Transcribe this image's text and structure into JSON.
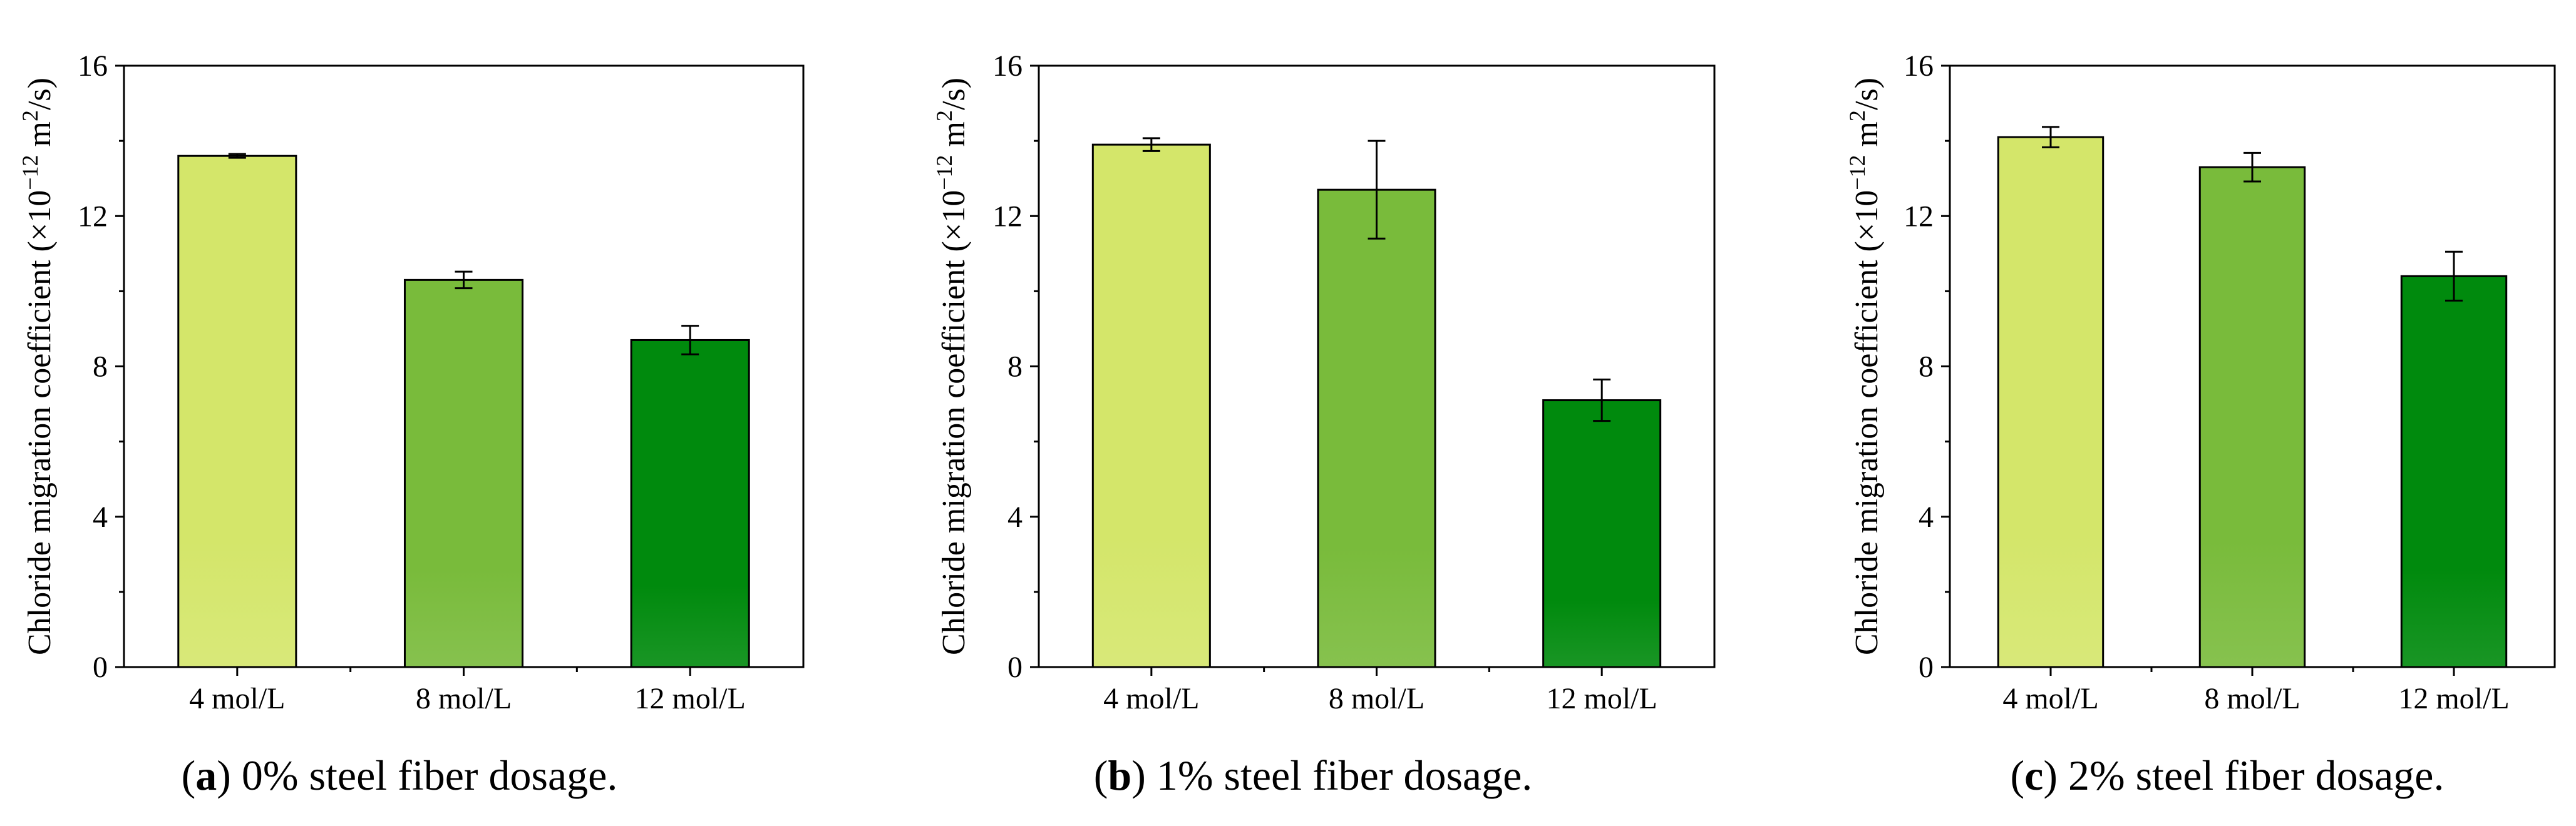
{
  "chart_data": [
    {
      "type": "bar",
      "panel_letter": "a",
      "title": "0% steel fiber dosage.",
      "categories": [
        "4 mol/L",
        "8 mol/L",
        "12 mol/L"
      ],
      "values": [
        13.6,
        10.3,
        8.7
      ],
      "errors": [
        0.05,
        0.22,
        0.38
      ],
      "ylabel_text": "Chloride migration coefficient (×10",
      "ylabel_exp": "−12",
      "ylabel_unit": " m",
      "ylabel_unit_exp": "2",
      "ylabel_tail": "/s)",
      "xlabel": "",
      "ylim": [
        0,
        16
      ],
      "yticks": [
        0,
        4,
        8,
        12,
        16
      ],
      "colors": [
        "#d4e66a",
        "#79bb3b",
        "#008a0d"
      ]
    },
    {
      "type": "bar",
      "panel_letter": "b",
      "title": "1% steel fiber dosage.",
      "categories": [
        "4 mol/L",
        "8 mol/L",
        "12 mol/L"
      ],
      "values": [
        13.9,
        12.7,
        7.1
      ],
      "errors": [
        0.17,
        1.3,
        0.55
      ],
      "ylabel_text": "Chloride migration coefficient (×10",
      "ylabel_exp": "−12",
      "ylabel_unit": " m",
      "ylabel_unit_exp": "2",
      "ylabel_tail": "/s)",
      "xlabel": "",
      "ylim": [
        0,
        16
      ],
      "yticks": [
        0,
        4,
        8,
        12,
        16
      ],
      "colors": [
        "#d4e66a",
        "#79bb3b",
        "#008a0d"
      ]
    },
    {
      "type": "bar",
      "panel_letter": "c",
      "title": "2% steel fiber dosage.",
      "categories": [
        "4 mol/L",
        "8 mol/L",
        "12 mol/L"
      ],
      "values": [
        14.1,
        13.3,
        10.4
      ],
      "errors": [
        0.27,
        0.38,
        0.65
      ],
      "ylabel_text": "Chloride migration coefficient (×10",
      "ylabel_exp": "−12",
      "ylabel_unit": " m",
      "ylabel_unit_exp": "2",
      "ylabel_tail": "/s)",
      "xlabel": "",
      "ylim": [
        0,
        16
      ],
      "yticks": [
        0,
        4,
        8,
        12,
        16
      ],
      "colors": [
        "#d4e66a",
        "#79bb3b",
        "#008a0d"
      ]
    }
  ]
}
